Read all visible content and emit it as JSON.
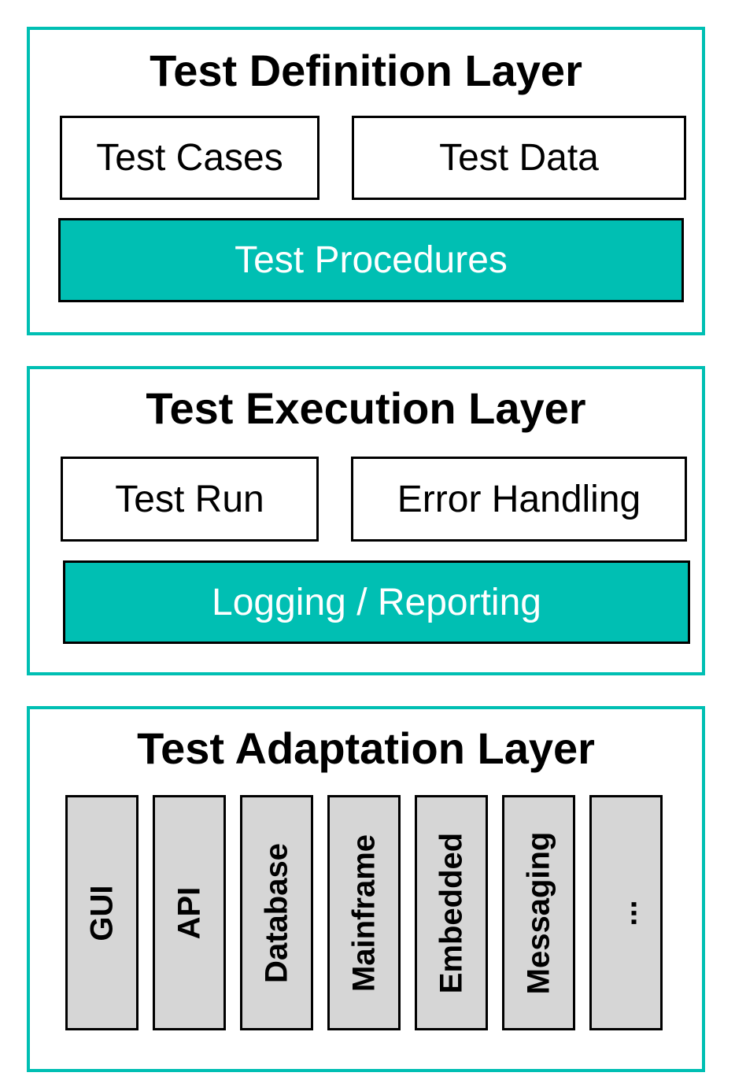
{
  "colors": {
    "accent": "#00bfb3",
    "adapter_fill": "#d6d6d6"
  },
  "layers": [
    {
      "title": "Test Definition Layer",
      "items": [
        "Test Cases",
        "Test Data"
      ],
      "highlight": "Test Procedures"
    },
    {
      "title": "Test Execution Layer",
      "items": [
        "Test Run",
        "Error Handling"
      ],
      "highlight": "Logging / Reporting"
    },
    {
      "title": "Test Adaptation Layer",
      "adapters": [
        "GUI",
        "API",
        "Database",
        "Mainframe",
        "Embedded",
        "Messaging",
        "..."
      ]
    }
  ]
}
